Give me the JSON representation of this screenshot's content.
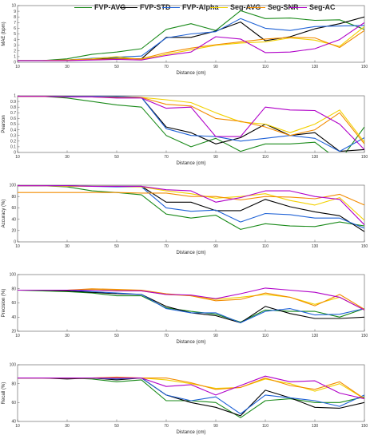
{
  "colors": {
    "FVP-AVG": "#1a8a1a",
    "FVP-STD": "#000000",
    "FVP-Alpha": "#1f62d6",
    "Seg-AVG": "#f2d100",
    "Seg-SNR": "#f28c00",
    "Seg-AC": "#b000c8"
  },
  "legend": {
    "items": [
      {
        "name": "FVP-AVG",
        "label": "FVP-AVG"
      },
      {
        "name": "FVP-STD",
        "label": "FVP-STD"
      },
      {
        "name": "FVP-Alpha",
        "label": "FVP-Alpha"
      },
      {
        "name": "Seg-AVG",
        "label": "Seg-AVG"
      },
      {
        "name": "Seg-SNR",
        "label": "Seg-SNR"
      },
      {
        "name": "Seg-AC",
        "label": "Seg-AC"
      }
    ],
    "placement": "top"
  },
  "chart_data": [
    {
      "type": "line",
      "ylabel": "MAE (bpm)",
      "xlabel": "Distance (cm)",
      "x": [
        10,
        20,
        30,
        40,
        50,
        60,
        70,
        80,
        90,
        100,
        110,
        120,
        130,
        140,
        150
      ],
      "xticks": [
        10,
        30,
        50,
        70,
        90,
        110,
        130,
        150
      ],
      "xlim": [
        10,
        150
      ],
      "ylim": [
        0,
        10
      ],
      "yticks": [
        0,
        1,
        2,
        3,
        4,
        5,
        6,
        7,
        8,
        9,
        10
      ],
      "series": [
        {
          "name": "FVP-AVG",
          "values": [
            0.3,
            0.3,
            0.6,
            1.4,
            1.8,
            2.4,
            5.8,
            6.8,
            5.6,
            9.1,
            7.7,
            7.8,
            7.4,
            7.5,
            5.8
          ]
        },
        {
          "name": "FVP-STD",
          "values": [
            0.3,
            0.3,
            0.4,
            0.6,
            0.7,
            0.6,
            4.4,
            4.4,
            5.5,
            7.1,
            3.8,
            4.5,
            5.9,
            6.8,
            8.0
          ]
        },
        {
          "name": "FVP-Alpha",
          "values": [
            0.3,
            0.3,
            0.4,
            0.7,
            0.9,
            1.1,
            4.3,
            5.0,
            5.4,
            7.7,
            6.0,
            5.6,
            6.3,
            6.4,
            6.5
          ]
        },
        {
          "name": "Seg-AVG",
          "values": [
            0.3,
            0.3,
            0.4,
            0.6,
            1.0,
            0.5,
            1.4,
            2.2,
            3.0,
            3.4,
            3.6,
            4.3,
            3.9,
            2.8,
            6.3
          ]
        },
        {
          "name": "Seg-SNR",
          "values": [
            0.3,
            0.3,
            0.4,
            0.5,
            0.6,
            0.6,
            1.7,
            2.5,
            3.1,
            3.6,
            4.1,
            4.4,
            4.3,
            2.6,
            5.6
          ]
        },
        {
          "name": "Seg-AC",
          "values": [
            0.3,
            0.3,
            0.3,
            0.4,
            0.5,
            0.4,
            1.2,
            1.8,
            4.5,
            4.1,
            1.7,
            1.8,
            2.4,
            4.0,
            7.0
          ]
        }
      ]
    },
    {
      "type": "line",
      "ylabel": "Pearson",
      "xlabel": "Distance (cm)",
      "x": [
        10,
        20,
        30,
        40,
        50,
        60,
        70,
        80,
        90,
        100,
        110,
        120,
        130,
        140,
        150
      ],
      "xticks": [
        10,
        30,
        50,
        70,
        90,
        110,
        130,
        150
      ],
      "xlim": [
        10,
        150
      ],
      "ylim": [
        0,
        1
      ],
      "yticks": [
        0,
        0.1,
        0.2,
        0.3,
        0.4,
        0.5,
        0.6,
        0.7,
        0.8,
        0.9,
        1
      ],
      "series": [
        {
          "name": "FVP-AVG",
          "values": [
            0.99,
            0.99,
            0.96,
            0.9,
            0.84,
            0.8,
            0.3,
            0.1,
            0.25,
            0.02,
            0.15,
            0.15,
            0.18,
            -0.15,
            0.45
          ]
        },
        {
          "name": "FVP-STD",
          "values": [
            0.99,
            0.99,
            0.99,
            0.98,
            0.98,
            0.97,
            0.45,
            0.35,
            0.15,
            0.26,
            0.5,
            0.3,
            0.35,
            0.02,
            0.05
          ]
        },
        {
          "name": "FVP-Alpha",
          "values": [
            0.99,
            0.99,
            0.99,
            0.99,
            0.99,
            0.97,
            0.42,
            0.3,
            0.28,
            0.2,
            0.25,
            0.3,
            0.25,
            0.02,
            0.26
          ]
        },
        {
          "name": "Seg-AVG",
          "values": [
            0.99,
            0.99,
            0.98,
            0.98,
            0.97,
            0.97,
            0.93,
            0.88,
            0.7,
            0.54,
            0.5,
            0.35,
            0.5,
            0.75,
            0.18
          ]
        },
        {
          "name": "Seg-SNR",
          "values": [
            0.99,
            0.99,
            0.98,
            0.98,
            0.97,
            0.97,
            0.85,
            0.82,
            0.6,
            0.55,
            0.45,
            0.3,
            0.4,
            0.7,
            0.15
          ]
        },
        {
          "name": "Seg-AC",
          "values": [
            0.99,
            0.99,
            0.98,
            0.98,
            0.96,
            0.96,
            0.78,
            0.8,
            0.28,
            0.28,
            0.8,
            0.75,
            0.74,
            0.5,
            0.05
          ]
        }
      ]
    },
    {
      "type": "line",
      "ylabel": "Accuracy (%)",
      "xlabel": "Distance (cm)",
      "x": [
        10,
        20,
        30,
        40,
        50,
        60,
        70,
        80,
        90,
        100,
        110,
        120,
        130,
        140,
        150
      ],
      "xticks": [
        10,
        30,
        50,
        70,
        90,
        110,
        130,
        150
      ],
      "xlim": [
        10,
        150
      ],
      "ylim": [
        0,
        100
      ],
      "yticks": [
        0,
        20,
        40,
        60,
        80,
        100
      ],
      "series": [
        {
          "name": "FVP-AVG",
          "values": [
            99,
            99,
            97,
            90,
            87,
            83,
            49,
            42,
            47,
            22,
            32,
            28,
            27,
            35,
            28
          ]
        },
        {
          "name": "FVP-STD",
          "values": [
            99,
            99,
            99,
            98,
            98,
            98,
            70,
            70,
            55,
            55,
            75,
            62,
            53,
            46,
            18
          ]
        },
        {
          "name": "FVP-Alpha",
          "values": [
            99,
            99,
            99,
            98,
            97,
            97,
            60,
            54,
            56,
            35,
            50,
            48,
            42,
            42,
            24
          ]
        },
        {
          "name": "Seg-AVG",
          "values": [
            99,
            99,
            98,
            98,
            98,
            97,
            90,
            85,
            77,
            80,
            85,
            73,
            65,
            78,
            38
          ]
        },
        {
          "name": "Seg-SNR",
          "values": [
            87,
            87,
            87,
            87,
            87,
            86,
            86,
            80,
            80,
            74,
            80,
            79,
            76,
            84,
            65
          ]
        },
        {
          "name": "Seg-AC",
          "values": [
            99,
            99,
            99,
            98,
            98,
            98,
            92,
            90,
            70,
            78,
            90,
            90,
            80,
            75,
            30
          ]
        }
      ]
    },
    {
      "type": "line",
      "ylabel": "Precision (%)",
      "xlabel": "Distance (cm)",
      "x": [
        10,
        20,
        30,
        40,
        50,
        60,
        70,
        80,
        90,
        100,
        110,
        120,
        130,
        140,
        150
      ],
      "xticks": [
        10,
        30,
        50,
        70,
        90,
        110,
        130,
        150
      ],
      "xlim": [
        10,
        150
      ],
      "ylim": [
        20,
        100
      ],
      "yticks": [
        20,
        40,
        60,
        80,
        100
      ],
      "series": [
        {
          "name": "FVP-AVG",
          "values": [
            78,
            77,
            76,
            74,
            70,
            70,
            53,
            48,
            44,
            33,
            50,
            48,
            48,
            40,
            52
          ]
        },
        {
          "name": "FVP-STD",
          "values": [
            78,
            78,
            77,
            75,
            73,
            72,
            55,
            46,
            42,
            32,
            55,
            45,
            38,
            38,
            40
          ]
        },
        {
          "name": "FVP-Alpha",
          "values": [
            78,
            78,
            78,
            76,
            74,
            72,
            52,
            46,
            46,
            32,
            48,
            52,
            43,
            44,
            52
          ]
        },
        {
          "name": "Seg-AVG",
          "values": [
            78,
            78,
            78,
            79,
            78,
            77,
            72,
            70,
            65,
            68,
            72,
            68,
            58,
            68,
            50
          ]
        },
        {
          "name": "Seg-SNR",
          "values": [
            78,
            78,
            78,
            80,
            79,
            78,
            73,
            70,
            63,
            65,
            74,
            68,
            56,
            72,
            51
          ]
        },
        {
          "name": "Seg-AC",
          "values": [
            78,
            78,
            78,
            78,
            77,
            77,
            72,
            71,
            66,
            73,
            81,
            78,
            75,
            68,
            50
          ]
        }
      ]
    },
    {
      "type": "line",
      "ylabel": "Recall (%)",
      "xlabel": "Distance (cm)",
      "x": [
        10,
        20,
        30,
        40,
        50,
        60,
        70,
        80,
        90,
        100,
        110,
        120,
        130,
        140,
        150
      ],
      "xticks": [
        10,
        30,
        50,
        70,
        90,
        110,
        130,
        150
      ],
      "xlim": [
        10,
        150
      ],
      "ylim": [
        40,
        100
      ],
      "yticks": [
        40,
        60,
        80,
        100
      ],
      "series": [
        {
          "name": "FVP-AVG",
          "values": [
            86,
            86,
            86,
            85,
            82,
            84,
            62,
            62,
            60,
            44,
            62,
            64,
            60,
            60,
            66
          ]
        },
        {
          "name": "FVP-STD",
          "values": [
            86,
            86,
            85,
            86,
            84,
            86,
            68,
            60,
            55,
            46,
            73,
            65,
            55,
            54,
            60
          ]
        },
        {
          "name": "FVP-Alpha",
          "values": [
            86,
            86,
            86,
            86,
            85,
            86,
            68,
            62,
            66,
            48,
            68,
            65,
            62,
            56,
            68
          ]
        },
        {
          "name": "Seg-AVG",
          "values": [
            86,
            86,
            86,
            86,
            86,
            86,
            84,
            80,
            75,
            76,
            85,
            80,
            72,
            80,
            64
          ]
        },
        {
          "name": "Seg-SNR",
          "values": [
            86,
            86,
            86,
            86,
            87,
            86,
            86,
            81,
            74,
            76,
            86,
            78,
            74,
            82,
            64
          ]
        },
        {
          "name": "Seg-AC",
          "values": [
            86,
            86,
            86,
            86,
            86,
            86,
            77,
            79,
            68,
            78,
            88,
            82,
            83,
            70,
            64
          ]
        }
      ]
    }
  ]
}
